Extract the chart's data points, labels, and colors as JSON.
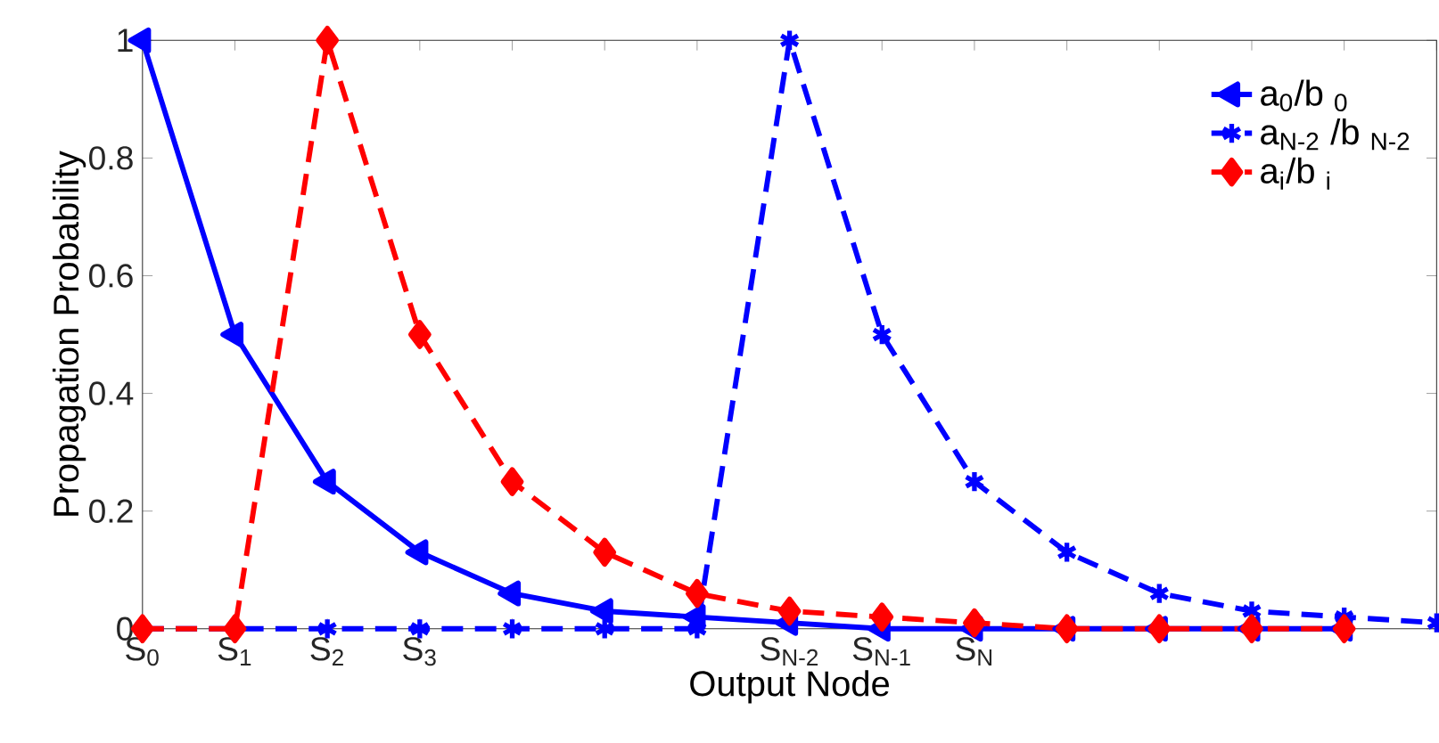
{
  "chart_data": {
    "type": "line",
    "xlabel": "Output Node",
    "ylabel": "Propagation Probability",
    "xlim": [
      0,
      14
    ],
    "ylim": [
      0,
      1
    ],
    "xticks": [
      {
        "value": 0,
        "label": "S$_{0}$"
      },
      {
        "value": 1,
        "label": "S$_{1}$"
      },
      {
        "value": 2,
        "label": "S$_{2}$"
      },
      {
        "value": 3,
        "label": "S$_{3}$"
      },
      {
        "value": 4,
        "label": null
      },
      {
        "value": 5,
        "label": null
      },
      {
        "value": 6,
        "label": null
      },
      {
        "value": 7,
        "label": "S$_{N-2}$"
      },
      {
        "value": 8,
        "label": "S$_{N-1}$"
      },
      {
        "value": 9,
        "label": "S$_{N}$"
      },
      {
        "value": 10,
        "label": null
      },
      {
        "value": 11,
        "label": null
      },
      {
        "value": 12,
        "label": null
      },
      {
        "value": 13,
        "label": null
      },
      {
        "value": 14,
        "label": null
      }
    ],
    "yticks": [
      0,
      0.2,
      0.4,
      0.6,
      0.8,
      1
    ],
    "grid": false,
    "legend": "top right",
    "series": [
      {
        "name": "a$_{0}$/b $_{0}$",
        "color": "#0000ff",
        "marker": "triangle",
        "line_style": "solid",
        "x": [
          0,
          1,
          2,
          3,
          4,
          5,
          6,
          7,
          8,
          9,
          10,
          11,
          12,
          13
        ],
        "values": [
          1,
          0.5,
          0.25,
          0.13,
          0.06,
          0.03,
          0.02,
          0.01,
          0,
          0,
          0,
          0,
          0,
          0
        ]
      },
      {
        "name": "a$_{N-2}$ /b $_{N-2}$",
        "color": "#0000ff",
        "marker": "cross",
        "line_style": "dashed",
        "x": [
          0,
          1,
          2,
          3,
          4,
          5,
          6,
          7,
          8,
          9,
          10,
          11,
          12,
          13,
          14
        ],
        "values": [
          0,
          null,
          0,
          0,
          0,
          0,
          0,
          1,
          0.5,
          0.25,
          0.13,
          0.06,
          0.03,
          0.02,
          0.01
        ]
      },
      {
        "name": "a$_{i}$/b $_{i}$",
        "color": "#ff0000",
        "marker": "diamond",
        "line_style": "dashed",
        "x": [
          0,
          1,
          2,
          3,
          4,
          5,
          6,
          7,
          8,
          9,
          10,
          11,
          12,
          13
        ],
        "values": [
          0,
          0,
          1,
          0.5,
          0.25,
          0.13,
          0.06,
          0.03,
          0.02,
          0.01,
          0,
          0,
          0,
          0
        ]
      }
    ]
  }
}
